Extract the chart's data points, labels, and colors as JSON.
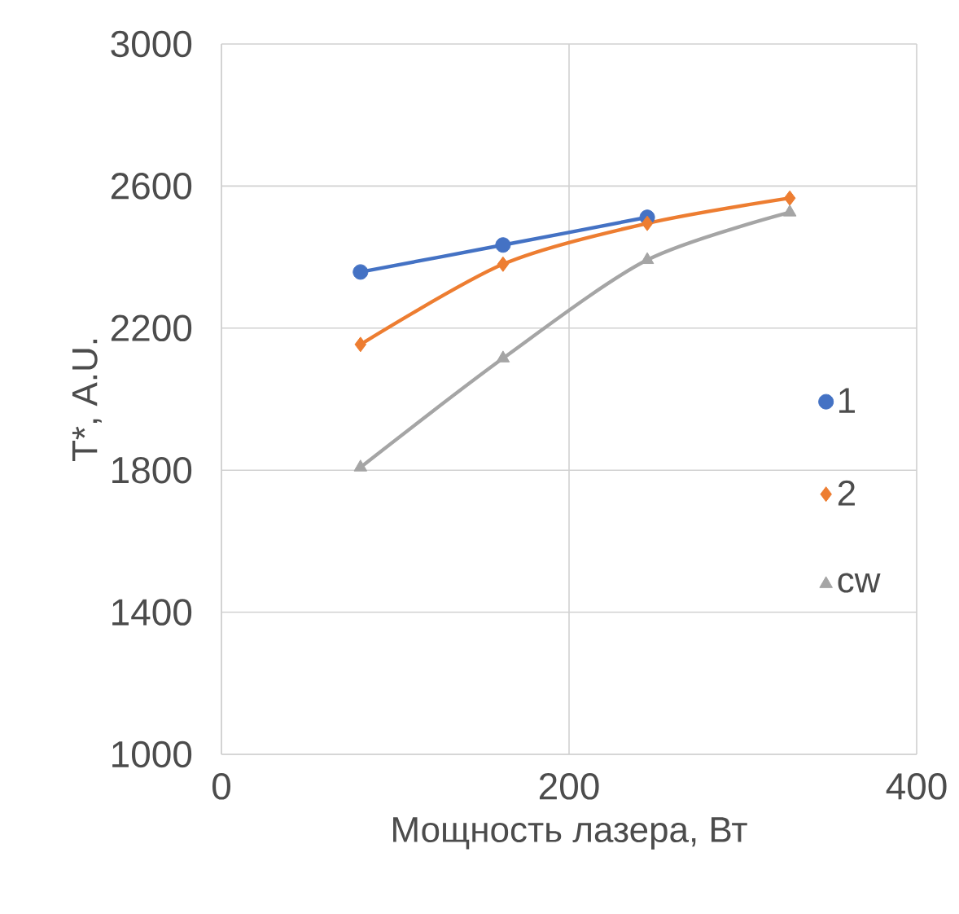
{
  "chart_data": {
    "type": "line",
    "xlabel": "Мощность лазера, Вт",
    "ylabel": "T*, A.U.",
    "xlim": [
      0,
      400
    ],
    "xticks": [
      0,
      200,
      400
    ],
    "ylim": [
      1000,
      3000
    ],
    "yticks": [
      1000,
      1400,
      1800,
      2200,
      2600,
      3000
    ],
    "grid": true,
    "legend": "right",
    "line_style": "solid",
    "series": [
      {
        "name": "1",
        "color": "#4472c4",
        "marker": "circle",
        "x": [
          80,
          162,
          245
        ],
        "values": [
          2358,
          2434,
          2512
        ]
      },
      {
        "name": "2",
        "color": "#ed7d31",
        "marker": "diamond",
        "x": [
          80,
          162,
          245,
          327
        ],
        "values": [
          2154,
          2380,
          2495,
          2566
        ]
      },
      {
        "name": "cw",
        "color": "#a5a5a5",
        "marker": "triangle",
        "x": [
          80,
          162,
          245,
          327
        ],
        "values": [
          1808,
          2115,
          2392,
          2526
        ]
      }
    ]
  }
}
